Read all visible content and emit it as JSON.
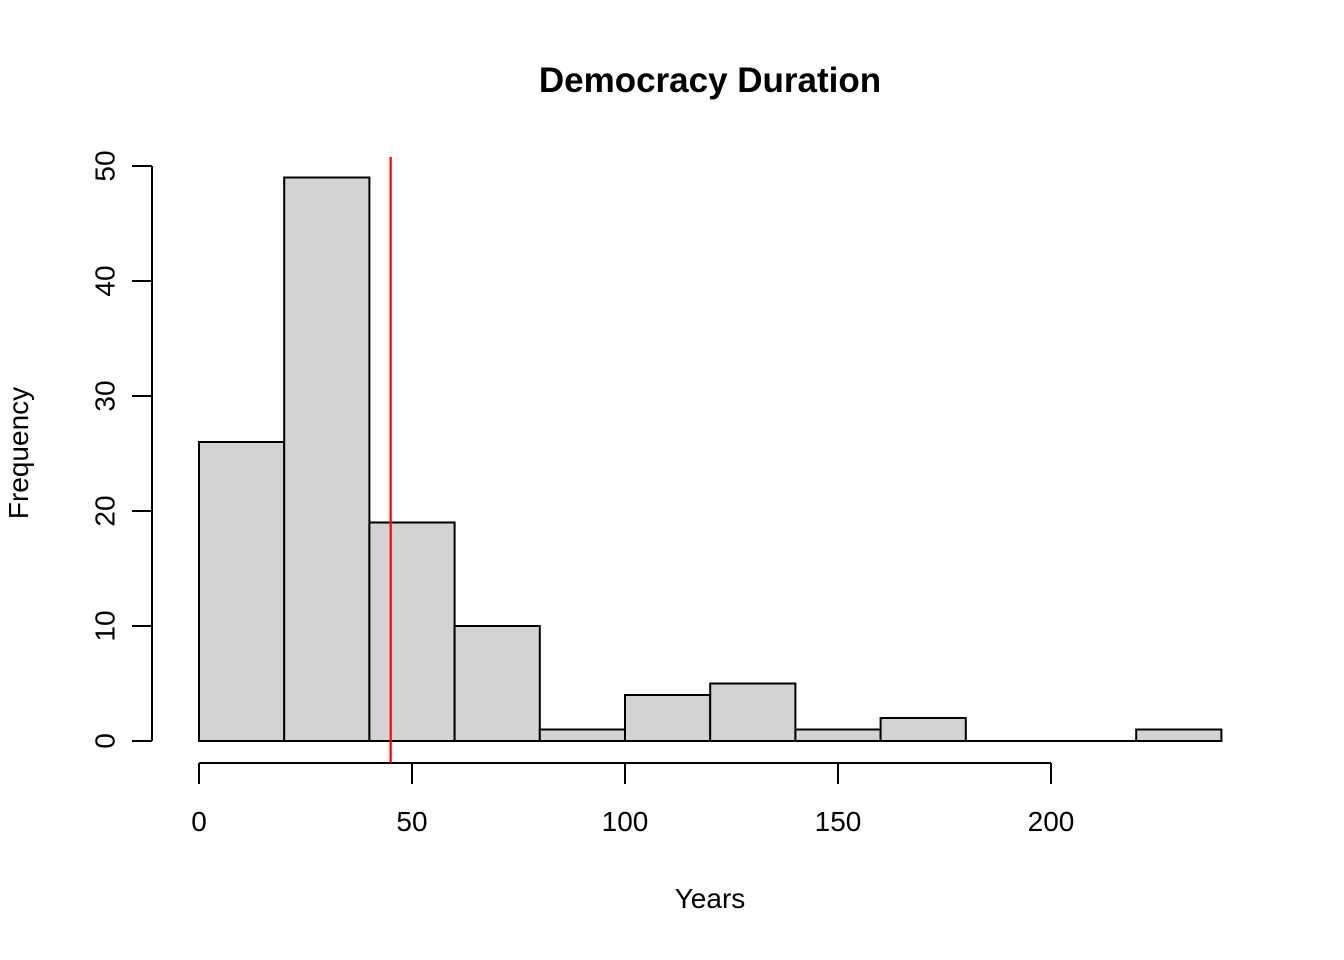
{
  "chart_data": {
    "type": "bar",
    "subtype": "histogram",
    "title": "Democracy Duration",
    "xlabel": "Years",
    "ylabel": "Frequency",
    "bin_start": 0,
    "bin_width": 20,
    "bins": [
      "0-20",
      "20-40",
      "40-60",
      "60-80",
      "80-100",
      "100-120",
      "120-140",
      "140-160",
      "160-180",
      "180-200",
      "200-220",
      "220-240"
    ],
    "counts": [
      26,
      49,
      19,
      10,
      1,
      4,
      5,
      1,
      2,
      0,
      0,
      1
    ],
    "x_ticks": [
      0,
      50,
      100,
      150,
      200
    ],
    "y_ticks": [
      0,
      10,
      20,
      30,
      40,
      50
    ],
    "xlim": [
      0,
      240
    ],
    "ylim": [
      0,
      50
    ],
    "grid": false,
    "legend": null,
    "vline": {
      "x": 45,
      "color": "#ff0000"
    },
    "colors": {
      "bar_fill": "#d3d3d3",
      "bar_stroke": "#000000",
      "axis": "#000000",
      "text": "#000000",
      "background": "#ffffff"
    }
  }
}
